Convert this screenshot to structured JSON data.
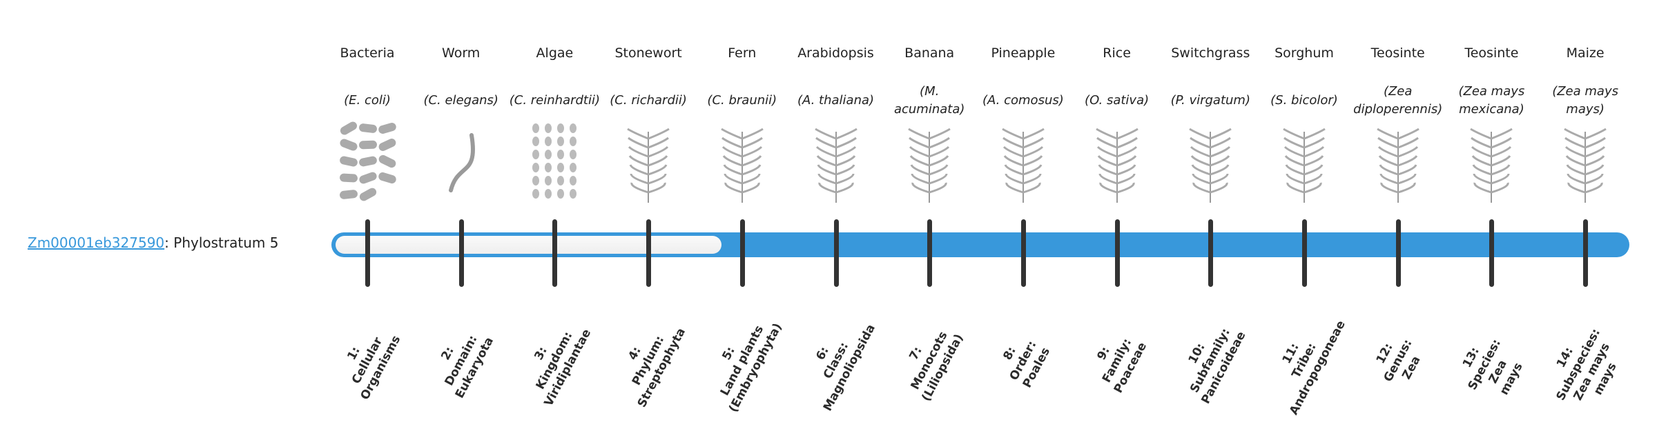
{
  "gene": {
    "id": "Zm00001eb327590",
    "suffix": ": Phylostratum 5"
  },
  "phylostratum": 5,
  "colors": {
    "accent": "#3898db",
    "tick": "#333333",
    "empty": "#f3f3f3"
  },
  "organisms": [
    {
      "name": "Bacteria",
      "species": "(E. coli)",
      "icon": "bacteria-illustration"
    },
    {
      "name": "Worm",
      "species": "(C. elegans)",
      "icon": "worm-illustration"
    },
    {
      "name": "Algae",
      "species": "(C. reinhardtii)",
      "icon": "algae-illustration"
    },
    {
      "name": "Stonewort",
      "species": "(C. richardii)",
      "icon": "stonewort-illustration"
    },
    {
      "name": "Fern",
      "species": "(C. braunii)",
      "icon": "fern-illustration"
    },
    {
      "name": "Arabidopsis",
      "species": "(A. thaliana)",
      "icon": "arabidopsis-illustration"
    },
    {
      "name": "Banana",
      "species": "(M. acuminata)",
      "icon": "banana-illustration"
    },
    {
      "name": "Pineapple",
      "species": "(A. comosus)",
      "icon": "pineapple-illustration"
    },
    {
      "name": "Rice",
      "species": "(O. sativa)",
      "icon": "rice-illustration"
    },
    {
      "name": "Switchgrass",
      "species": "(P. virgatum)",
      "icon": "switchgrass-illustration"
    },
    {
      "name": "Sorghum",
      "species": "(S. bicolor)",
      "icon": "sorghum-illustration"
    },
    {
      "name": "Teosinte",
      "species": "(Zea diploperennis)",
      "icon": "teosinte-illustration"
    },
    {
      "name": "Teosinte",
      "species": "(Zea mays mexicana)",
      "icon": "teosinte-illustration"
    },
    {
      "name": "Maize",
      "species": "(Zea mays mays)",
      "icon": "maize-illustration"
    }
  ],
  "strata": [
    [
      "1:",
      "Cellular",
      "Organisms"
    ],
    [
      "2:",
      "Domain:",
      "Eukaryota"
    ],
    [
      "3:",
      "Kingdom:",
      "Viridiplantae"
    ],
    [
      "4:",
      "Phylum:",
      "Streptophyta"
    ],
    [
      "5:",
      "Land plants",
      "(Embryophyta)"
    ],
    [
      "6:",
      "Class:",
      "Magnoliopsida"
    ],
    [
      "7:",
      "Monocots",
      "(Liliopsida)"
    ],
    [
      "8:",
      "Order:",
      "Poales"
    ],
    [
      "9:",
      "Family:",
      "Poaceae"
    ],
    [
      "10:",
      "Subfamily:",
      "Panicoideae"
    ],
    [
      "11:",
      "Tribe:",
      "Andropogoneae"
    ],
    [
      "12:",
      "Genus:",
      "Zea"
    ],
    [
      "13:",
      "Species:",
      "Zea",
      "mays"
    ],
    [
      "14:",
      "Subspecies:",
      "Zea mays",
      "mays"
    ]
  ]
}
